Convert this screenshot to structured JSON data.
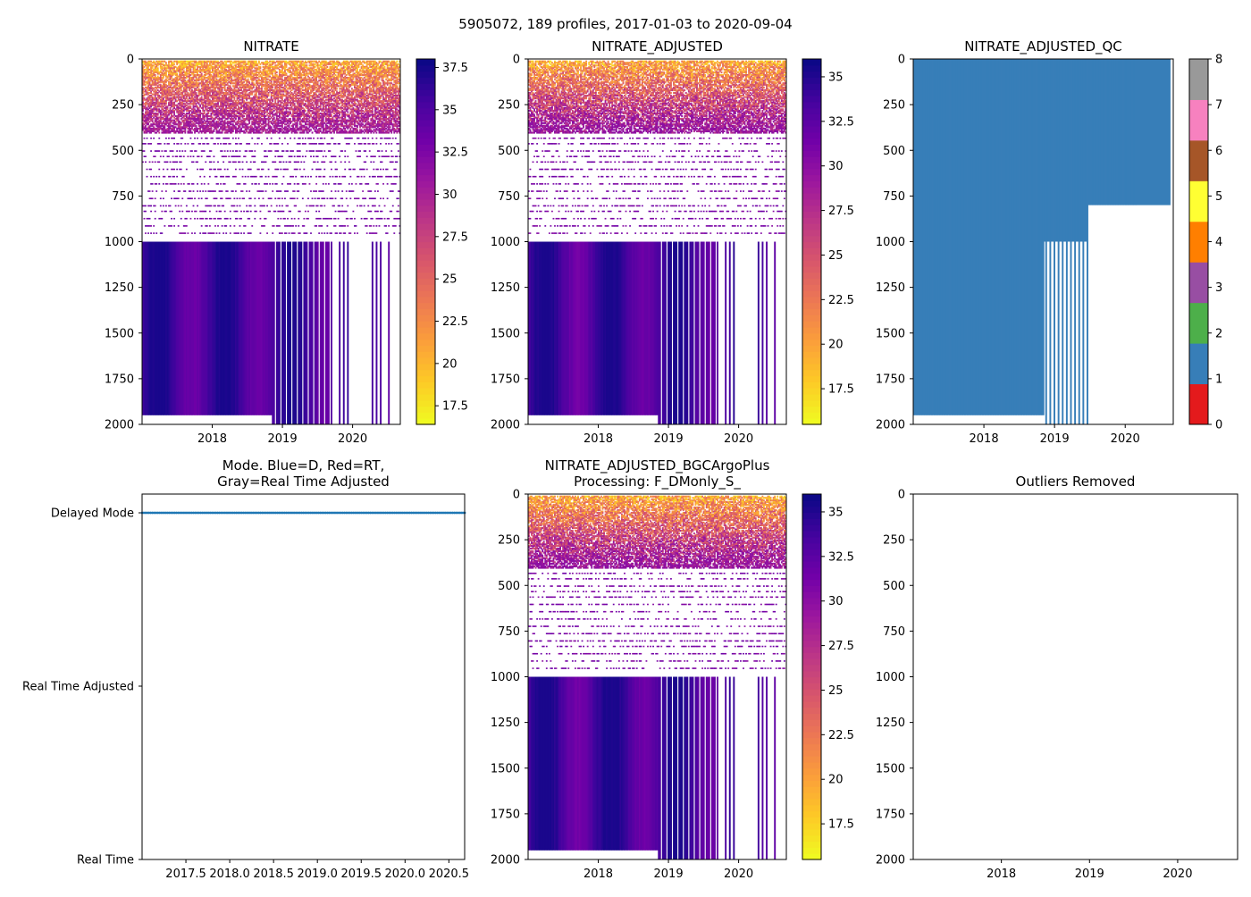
{
  "figure": {
    "suptitle": "5905072, 189 profiles, 2017-01-03 to 2020-09-04"
  },
  "chart_data": [
    {
      "id": "nitrate",
      "type": "heatmap",
      "title": "NITRATE",
      "xlabel": "",
      "ylabel": "",
      "xlim": [
        2017.0,
        2020.68
      ],
      "ylim": [
        2000,
        0
      ],
      "xticks": [
        2018,
        2019,
        2020
      ],
      "yticks": [
        0,
        250,
        500,
        750,
        1000,
        1250,
        1500,
        1750,
        2000
      ],
      "colorbar": {
        "cmap": "plasma_r",
        "range": [
          16.4,
          38.0
        ],
        "ticks": [
          17.5,
          20.0,
          22.5,
          25.0,
          27.5,
          30.0,
          32.5,
          35.0,
          37.5
        ]
      },
      "shallow_range": [
        17,
        31
      ],
      "deep_range": [
        33,
        37.5
      ]
    },
    {
      "id": "nitrate_adjusted",
      "type": "heatmap",
      "title": "NITRATE_ADJUSTED",
      "xlabel": "",
      "ylabel": "",
      "xlim": [
        2017.0,
        2020.68
      ],
      "ylim": [
        2000,
        0
      ],
      "xticks": [
        2018,
        2019,
        2020
      ],
      "yticks": [
        0,
        250,
        500,
        750,
        1000,
        1250,
        1500,
        1750,
        2000
      ],
      "colorbar": {
        "cmap": "plasma_r",
        "range": [
          15.5,
          36.0
        ],
        "ticks": [
          17.5,
          20.0,
          22.5,
          25.0,
          27.5,
          30.0,
          32.5,
          35.0
        ]
      },
      "shallow_range": [
        16,
        30
      ],
      "deep_range": [
        31,
        35.5
      ]
    },
    {
      "id": "nitrate_adjusted_qc",
      "type": "heatmap",
      "title": "NITRATE_ADJUSTED_QC",
      "xlabel": "",
      "ylabel": "",
      "xlim": [
        2017.0,
        2020.68
      ],
      "ylim": [
        2000,
        0
      ],
      "xticks": [
        2018,
        2019,
        2020
      ],
      "yticks": [
        0,
        250,
        500,
        750,
        1000,
        1250,
        1500,
        1750,
        2000
      ],
      "colorbar": {
        "cmap": "Set1",
        "range": [
          0,
          8
        ],
        "ticks": [
          0,
          1,
          2,
          3,
          4,
          5,
          6,
          7,
          8
        ],
        "colors": [
          "#e41a1c",
          "#377eb8",
          "#4daf4a",
          "#984ea3",
          "#ff7f00",
          "#ffff33",
          "#a65628",
          "#f781bf",
          "#999999"
        ]
      },
      "qc_value": 1
    },
    {
      "id": "mode",
      "type": "scatter",
      "title": "Mode. Blue=D, Red=RT,",
      "title_line2": "Gray=Real Time Adjusted",
      "xlim": [
        2017.0,
        2020.68
      ],
      "xticks": [
        2017.5,
        2018.0,
        2018.5,
        2019.0,
        2019.5,
        2020.0,
        2020.5
      ],
      "xtick_labels": [
        "2017.5",
        "2018.0",
        "2018.5",
        "2019.0",
        "2019.5",
        "2020.0",
        "2020.5"
      ],
      "ylim": [
        0,
        2
      ],
      "ytick_labels": [
        "Delayed Mode",
        "Real Time Adjusted",
        "Real Time"
      ],
      "series": [
        {
          "name": "Delayed Mode",
          "color": "#1f77b4",
          "y": 2,
          "x_start": 2017.0,
          "x_end": 2020.68,
          "count": 189
        }
      ]
    },
    {
      "id": "bgcargoplus",
      "type": "heatmap",
      "title": "NITRATE_ADJUSTED_BGCArgoPlus",
      "title_line2": "Processing: F_DMonly_S_",
      "xlim": [
        2017.0,
        2020.68
      ],
      "ylim": [
        2000,
        0
      ],
      "xticks": [
        2018,
        2019,
        2020
      ],
      "yticks": [
        0,
        250,
        500,
        750,
        1000,
        1250,
        1500,
        1750,
        2000
      ],
      "colorbar": {
        "cmap": "plasma_r",
        "range": [
          15.5,
          36.0
        ],
        "ticks": [
          17.5,
          20.0,
          22.5,
          25.0,
          27.5,
          30.0,
          32.5,
          35.0
        ]
      },
      "shallow_range": [
        16,
        30
      ],
      "deep_range": [
        31,
        35.5
      ]
    },
    {
      "id": "outliers",
      "type": "scatter",
      "title": "Outliers Removed",
      "xlim": [
        2017.0,
        2020.68
      ],
      "ylim": [
        2000,
        0
      ],
      "xticks": [
        2018,
        2019,
        2020
      ],
      "yticks": [
        0,
        250,
        500,
        750,
        1000,
        1250,
        1500,
        1750,
        2000
      ],
      "series": []
    }
  ]
}
